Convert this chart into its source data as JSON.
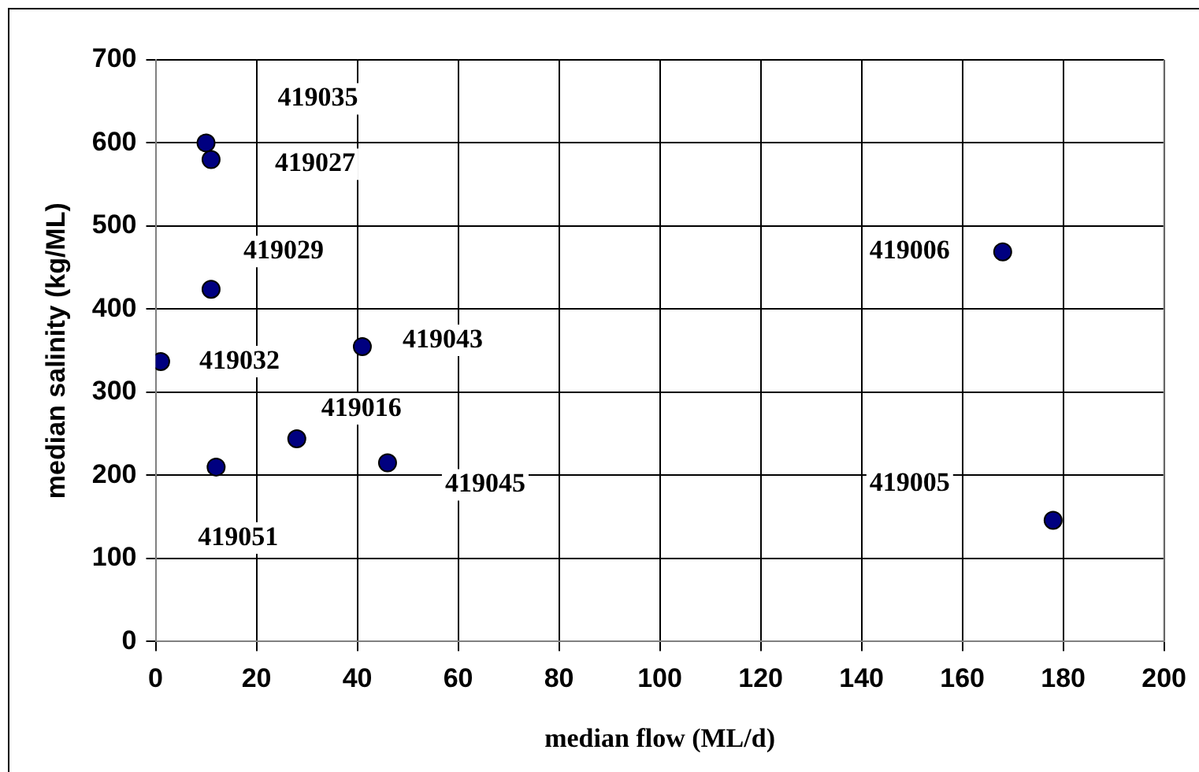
{
  "chart_data": {
    "type": "scatter",
    "xlabel": "median flow (ML/d)",
    "ylabel": "median salinity (kg/ML)",
    "x": [
      1,
      10,
      11,
      11,
      12,
      28,
      41,
      46,
      168,
      178
    ],
    "series": [
      {
        "color": "#000080",
        "values": [
          337,
          600,
          580,
          424,
          210,
          244,
          355,
          215,
          469,
          146
        ]
      }
    ],
    "xlim": [
      0,
      200
    ],
    "xticks": [
      0,
      20,
      40,
      60,
      80,
      100,
      120,
      140,
      160,
      180,
      200
    ],
    "ylim": [
      0,
      700
    ],
    "yticks": [
      0,
      100,
      200,
      300,
      400,
      500,
      600,
      700
    ],
    "grid": true,
    "legend": false,
    "marker": "circle",
    "annotations": [
      "419035",
      "419027",
      "419029",
      "419032",
      "419043",
      "419016",
      "419045",
      "419051",
      "419006",
      "419005"
    ]
  }
}
